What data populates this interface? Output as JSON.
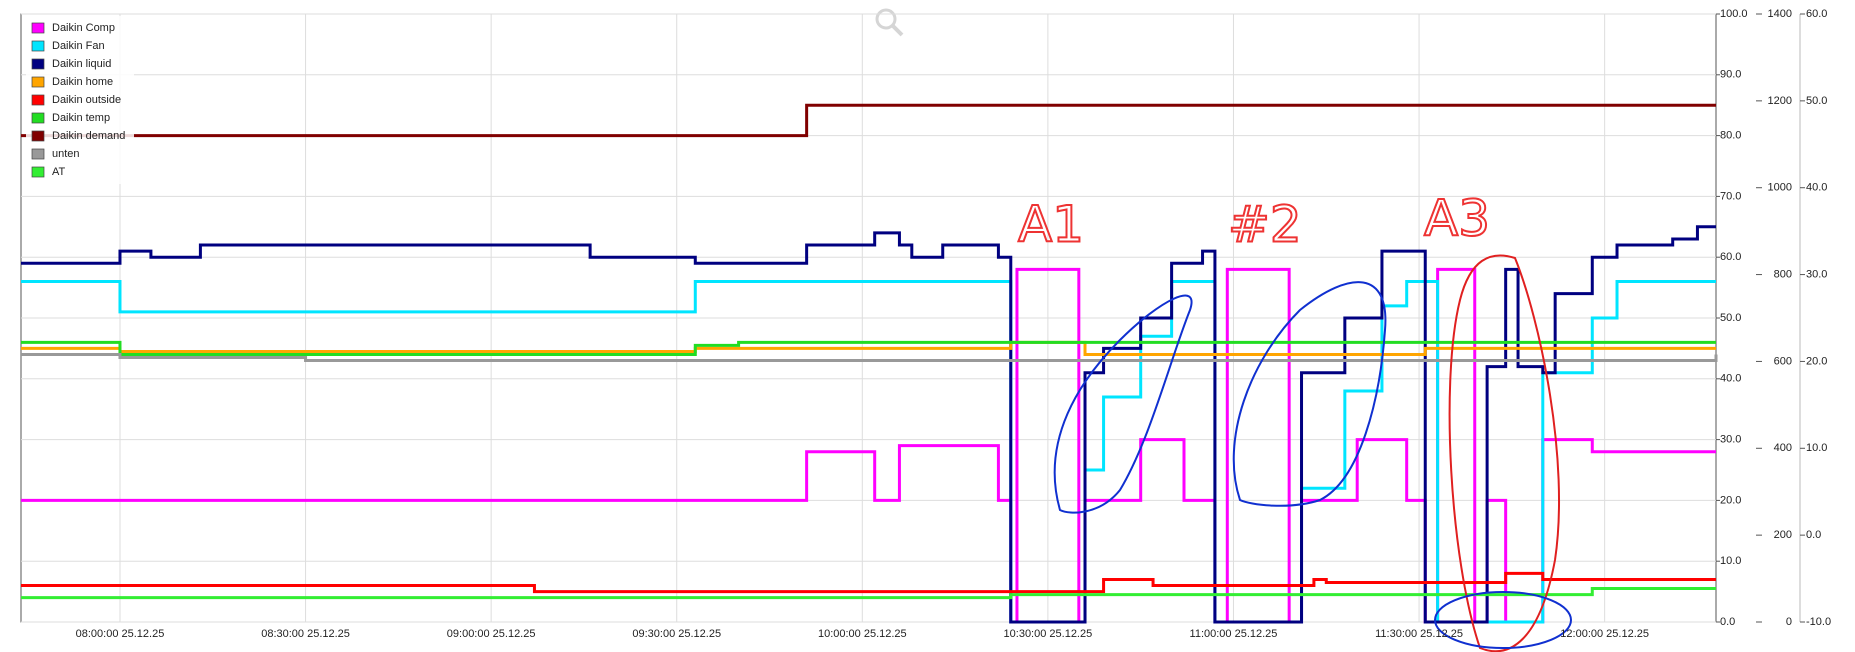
{
  "chart_data": {
    "type": "line",
    "step": true,
    "grid": true,
    "xlim": [
      "07:44:00 25.12.25",
      "12:18:00 25.12.25"
    ],
    "xticks": [
      "08:00:00 25.12.25",
      "08:30:00 25.12.25",
      "09:00:00 25.12.25",
      "09:30:00 25.12.25",
      "10:00:00 25.12.25",
      "10:30:00 25.12.25",
      "11:00:00 25.12.25",
      "11:30:00 25.12.25",
      "12:00:00 25.12.25"
    ],
    "ylim": [
      0,
      100
    ],
    "yticks": [
      {
        "value": 0,
        "label": "0.0"
      },
      {
        "value": 10,
        "label": "10.0"
      },
      {
        "value": 20,
        "label": "20.0"
      },
      {
        "value": 30,
        "label": "30.0"
      },
      {
        "value": 40,
        "label": "40.0"
      },
      {
        "value": 50,
        "label": "50.0"
      },
      {
        "value": 60,
        "label": "60.0"
      },
      {
        "value": 70,
        "label": "70.0"
      },
      {
        "value": 80,
        "label": "80.0"
      },
      {
        "value": 90,
        "label": "90.0"
      },
      {
        "value": 100,
        "label": "100.0"
      }
    ],
    "y2lim": [
      0,
      1400
    ],
    "y2ticks": [
      0,
      200,
      400,
      600,
      800,
      1000,
      1200,
      1400
    ],
    "y3lim": [
      -10,
      60
    ],
    "y3ticks": [
      {
        "value": -10,
        "label": "-10.0"
      },
      {
        "value": 0,
        "label": "0.0"
      },
      {
        "value": 10,
        "label": "10.0"
      },
      {
        "value": 20,
        "label": "20.0"
      },
      {
        "value": 30,
        "label": "30.0"
      },
      {
        "value": 40,
        "label": "40.0"
      },
      {
        "value": 50,
        "label": "50.0"
      },
      {
        "value": 60,
        "label": "60.0"
      }
    ],
    "annotations": [
      "A1",
      "#2",
      "A3"
    ],
    "series": [
      {
        "name": "Daikin Comp",
        "color": "#ff00ff",
        "x": [
          "07:44:00 25.12.25",
          "09:51:00 25.12.25",
          "10:02:00 25.12.25",
          "10:06:00 25.12.25",
          "10:22:00 25.12.25",
          "10:24:00 25.12.25",
          "10:25:00 25.12.25",
          "10:35:00 25.12.25",
          "10:36:00 25.12.25",
          "10:45:00 25.12.25",
          "10:52:00 25.12.25",
          "10:57:00 25.12.25",
          "10:59:00 25.12.25",
          "11:09:00 25.12.25",
          "11:11:00 25.12.25",
          "11:20:00 25.12.25",
          "11:28:00 25.12.25",
          "11:31:00 25.12.25",
          "11:33:00 25.12.25",
          "11:39:00 25.12.25",
          "11:41:00 25.12.25",
          "11:44:00 25.12.25",
          "11:50:00 25.12.25",
          "11:58:00 25.12.25",
          "12:18:00 25.12.25"
        ],
        "values": [
          20,
          28,
          20,
          29,
          20,
          0,
          58,
          0,
          20,
          30,
          20,
          0,
          58,
          0,
          20,
          30,
          20,
          0,
          58,
          0,
          20,
          0,
          30,
          28,
          28
        ]
      },
      {
        "name": "Daikin Fan",
        "color": "#00e5ff",
        "x": [
          "07:44:00 25.12.25",
          "08:00:00 25.12.25",
          "09:33:00 25.12.25",
          "10:24:00 25.12.25",
          "10:36:00 25.12.25",
          "10:39:00 25.12.25",
          "10:45:00 25.12.25",
          "10:50:00 25.12.25",
          "10:57:00 25.12.25",
          "11:11:00 25.12.25",
          "11:18:00 25.12.25",
          "11:24:00 25.12.25",
          "11:28:00 25.12.25",
          "11:33:00 25.12.25",
          "11:50:00 25.12.25",
          "11:58:00 25.12.25",
          "12:02:00 25.12.25",
          "12:18:00 25.12.25"
        ],
        "values": [
          56,
          51,
          56,
          0,
          25,
          37,
          47,
          56,
          0,
          22,
          38,
          52,
          56,
          0,
          41,
          50,
          56,
          56
        ]
      },
      {
        "name": "Daikin liquid",
        "color": "#000080",
        "x": [
          "07:44:00 25.12.25",
          "08:00:00 25.12.25",
          "08:05:00 25.12.25",
          "08:13:00 25.12.25",
          "09:16:00 25.12.25",
          "09:33:00 25.12.25",
          "09:51:00 25.12.25",
          "10:02:00 25.12.25",
          "10:06:00 25.12.25",
          "10:08:00 25.12.25",
          "10:13:00 25.12.25",
          "10:22:00 25.12.25",
          "10:24:00 25.12.25",
          "10:36:00 25.12.25",
          "10:39:00 25.12.25",
          "10:45:00 25.12.25",
          "10:50:00 25.12.25",
          "10:55:00 25.12.25",
          "10:57:00 25.12.25",
          "11:11:00 25.12.25",
          "11:18:00 25.12.25",
          "11:24:00 25.12.25",
          "11:31:00 25.12.25",
          "11:41:00 25.12.25",
          "11:44:00 25.12.25",
          "11:46:00 25.12.25",
          "11:50:00 25.12.25",
          "11:52:00 25.12.25",
          "11:58:00 25.12.25",
          "12:02:00 25.12.25",
          "12:11:00 25.12.25",
          "12:15:00 25.12.25",
          "12:18:00 25.12.25"
        ],
        "values": [
          59,
          61,
          60,
          62,
          60,
          59,
          62,
          64,
          62,
          60,
          62,
          60,
          0,
          41,
          45,
          50,
          59,
          61,
          0,
          41,
          50,
          61,
          0,
          42,
          58,
          42,
          41,
          54,
          60,
          62,
          63,
          65,
          65
        ]
      },
      {
        "name": "Daikin home",
        "color": "#ffa500",
        "x": [
          "07:44:00 25.12.25",
          "08:00:00 25.12.25",
          "09:33:00 25.12.25",
          "10:24:00 25.12.25",
          "10:36:00 25.12.25",
          "11:31:00 25.12.25",
          "12:18:00 25.12.25"
        ],
        "values": [
          45,
          44.5,
          45,
          46,
          44,
          45,
          45
        ]
      },
      {
        "name": "Daikin outside",
        "color": "#ff0000",
        "x": [
          "07:44:00 25.12.25",
          "09:07:00 25.12.25",
          "10:39:00 25.12.25",
          "10:47:00 25.12.25",
          "11:13:00 25.12.25",
          "11:15:00 25.12.25",
          "11:44:00 25.12.25",
          "11:50:00 25.12.25",
          "12:18:00 25.12.25"
        ],
        "values": [
          6,
          5,
          7,
          6,
          7,
          6.5,
          8,
          7,
          7
        ]
      },
      {
        "name": "Daikin temp",
        "color": "#22dd22",
        "x": [
          "07:44:00 25.12.25",
          "08:00:00 25.12.25",
          "09:33:00 25.12.25",
          "09:40:00 25.12.25",
          "12:18:00 25.12.25"
        ],
        "values": [
          46,
          44,
          45.5,
          46,
          46
        ]
      },
      {
        "name": "Daikin demand",
        "color": "#800000",
        "x": [
          "07:44:00 25.12.25",
          "09:51:00 25.12.25",
          "12:18:00 25.12.25"
        ],
        "values": [
          80,
          85,
          85
        ]
      },
      {
        "name": "unten",
        "color": "#999999",
        "x": [
          "07:44:00 25.12.25",
          "08:00:00 25.12.25",
          "08:30:00 25.12.25",
          "12:18:00 25.12.25"
        ],
        "values": [
          44,
          43.5,
          43,
          44
        ]
      },
      {
        "name": "AT",
        "color": "#33ee33",
        "x": [
          "07:44:00 25.12.25",
          "10:24:00 25.12.25",
          "11:58:00 25.12.25",
          "12:18:00 25.12.25"
        ],
        "values": [
          4,
          4.5,
          5.5,
          5.5
        ]
      }
    ]
  }
}
